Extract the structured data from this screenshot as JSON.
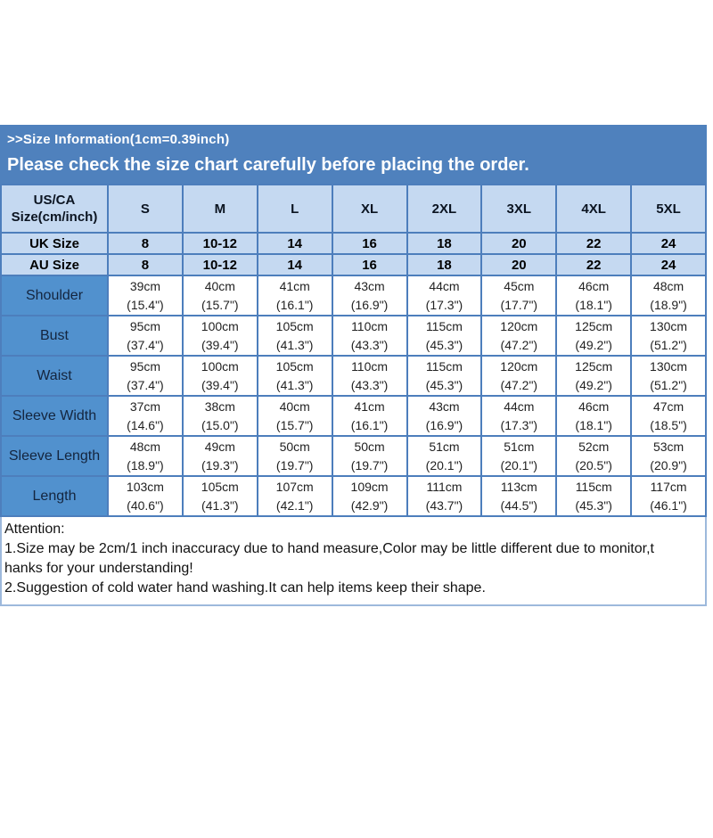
{
  "banner": {
    "title": ">>Size Information(1cm=0.39inch)",
    "subtitle": "Please check the size chart carefully before placing the order."
  },
  "size_chart": {
    "corner_header": [
      "US/CA",
      "Size(cm/inch)"
    ],
    "size_columns": [
      "S",
      "M",
      "L",
      "XL",
      "2XL",
      "3XL",
      "4XL",
      "5XL"
    ],
    "size_rows": [
      {
        "label": "UK Size",
        "values": [
          "8",
          "10-12",
          "14",
          "16",
          "18",
          "20",
          "22",
          "24"
        ]
      },
      {
        "label": "AU Size",
        "values": [
          "8",
          "10-12",
          "14",
          "16",
          "18",
          "20",
          "22",
          "24"
        ]
      }
    ],
    "measurement_rows": [
      {
        "label": "Shoulder",
        "cm": [
          "39cm",
          "40cm",
          "41cm",
          "43cm",
          "44cm",
          "45cm",
          "46cm",
          "48cm"
        ],
        "inch": [
          "(15.4\")",
          "(15.7\")",
          "(16.1\")",
          "(16.9\")",
          "(17.3\")",
          "(17.7\")",
          "(18.1\")",
          "(18.9\")"
        ]
      },
      {
        "label": "Bust",
        "cm": [
          "95cm",
          "100cm",
          "105cm",
          "110cm",
          "115cm",
          "120cm",
          "125cm",
          "130cm"
        ],
        "inch": [
          "(37.4\")",
          "(39.4\")",
          "(41.3\")",
          "(43.3\")",
          "(45.3\")",
          "(47.2\")",
          "(49.2\")",
          "(51.2\")"
        ]
      },
      {
        "label": "Waist",
        "cm": [
          "95cm",
          "100cm",
          "105cm",
          "110cm",
          "115cm",
          "120cm",
          "125cm",
          "130cm"
        ],
        "inch": [
          "(37.4\")",
          "(39.4\")",
          "(41.3\")",
          "(43.3\")",
          "(45.3\")",
          "(47.2\")",
          "(49.2\")",
          "(51.2\")"
        ]
      },
      {
        "label": "Sleeve Width",
        "cm": [
          "37cm",
          "38cm",
          "40cm",
          "41cm",
          "43cm",
          "44cm",
          "46cm",
          "47cm"
        ],
        "inch": [
          "(14.6\")",
          "(15.0\")",
          "(15.7\")",
          "(16.1\")",
          "(16.9\")",
          "(17.3\")",
          "(18.1\")",
          "(18.5\")"
        ]
      },
      {
        "label": "Sleeve Length",
        "cm": [
          "48cm",
          "49cm",
          "50cm",
          "50cm",
          "51cm",
          "51cm",
          "52cm",
          "53cm"
        ],
        "inch": [
          "(18.9\")",
          "(19.3\")",
          "(19.7\")",
          "(19.7\")",
          "(20.1\")",
          "(20.1\")",
          "(20.5\")",
          "(20.9\")"
        ]
      },
      {
        "label": "Length",
        "cm": [
          "103cm",
          "105cm",
          "107cm",
          "109cm",
          "111cm",
          "113cm",
          "115cm",
          "117cm"
        ],
        "inch": [
          "(40.6\")",
          "(41.3\")",
          "(42.1\")",
          "(42.9\")",
          "(43.7\")",
          "(44.5\")",
          "(45.3\")",
          "(46.1\")"
        ]
      }
    ]
  },
  "attention": {
    "lines": [
      "Attention:",
      "1.Size may be 2cm/1 inch inaccuracy due to hand measure,Color may be little different due to monitor,t",
      "hanks for your understanding!",
      "2.Suggestion of cold water hand washing.It can help items keep their shape."
    ]
  },
  "colors": {
    "banner_blue": "#4f81bd",
    "light_blue": "#c5d9f1",
    "label_blue": "#5191ce",
    "border_blue": "#4d7ebc",
    "attention_border": "#9db9dc"
  }
}
